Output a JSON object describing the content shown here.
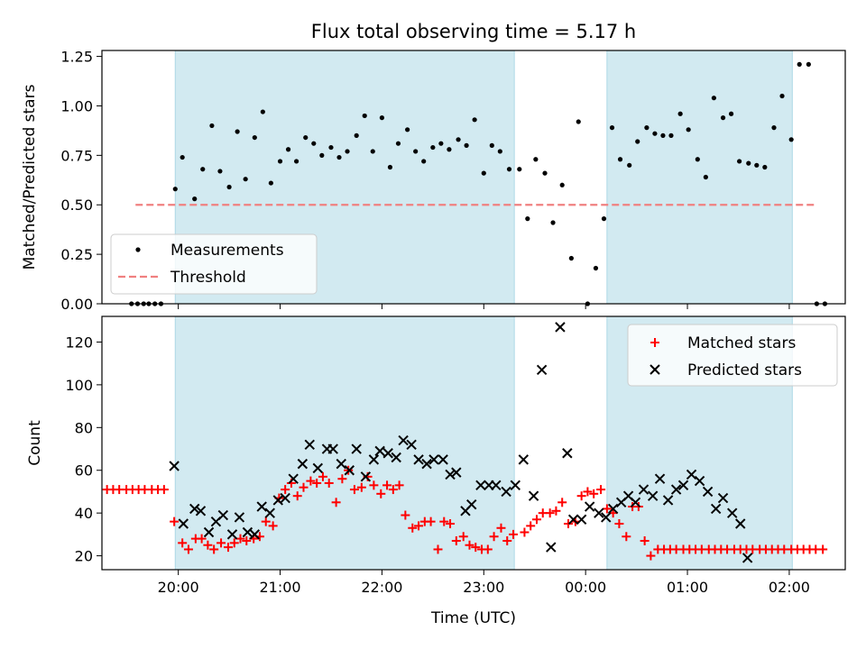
{
  "chart_data": [
    {
      "type": "scatter",
      "title": "Flux total observing time = 5.17 h",
      "ylabel": "Matched/Predicted stars",
      "xlim": [
        19.25,
        26.55
      ],
      "ylim": [
        0.0,
        1.28
      ],
      "xtick_values": [
        20,
        21,
        22,
        23,
        24,
        25,
        26
      ],
      "ytick_values": [
        0.0,
        0.25,
        0.5,
        0.75,
        1.0,
        1.25
      ],
      "ytick_labels": [
        "0.00",
        "0.25",
        "0.50",
        "0.75",
        "1.00",
        "1.25"
      ],
      "legend_position": "lower-left",
      "shaded_intervals": [
        [
          19.97,
          23.3
        ],
        [
          24.21,
          26.03
        ]
      ],
      "shade_color": "#add8e6",
      "series": [
        {
          "name": "Measurements",
          "color": "#000000",
          "marker": "dot",
          "x": [
            19.54,
            19.6,
            19.66,
            19.71,
            19.77,
            19.83,
            19.97,
            20.04,
            20.16,
            20.24,
            20.33,
            20.41,
            20.5,
            20.58,
            20.66,
            20.75,
            20.83,
            20.91,
            21.0,
            21.08,
            21.16,
            21.25,
            21.33,
            21.41,
            21.5,
            21.58,
            21.66,
            21.75,
            21.83,
            21.91,
            22.0,
            22.08,
            22.16,
            22.25,
            22.33,
            22.41,
            22.5,
            22.58,
            22.66,
            22.75,
            22.83,
            22.91,
            23.0,
            23.08,
            23.16,
            23.25,
            23.35,
            23.43,
            23.51,
            23.6,
            23.68,
            23.77,
            23.86,
            23.93,
            24.02,
            24.1,
            24.18,
            24.26,
            24.34,
            24.43,
            24.51,
            24.6,
            24.68,
            24.76,
            24.84,
            24.93,
            25.01,
            25.1,
            25.18,
            25.26,
            25.35,
            25.43,
            25.51,
            25.6,
            25.68,
            25.76,
            25.85,
            25.93,
            26.02,
            26.1,
            26.19,
            26.27,
            26.35
          ],
          "y": [
            0,
            0,
            0,
            0,
            0,
            0,
            0.58,
            0.74,
            0.53,
            0.68,
            0.9,
            0.67,
            0.59,
            0.87,
            0.63,
            0.84,
            0.97,
            0.61,
            0.72,
            0.78,
            0.72,
            0.84,
            0.81,
            0.75,
            0.79,
            0.74,
            0.77,
            0.85,
            0.95,
            0.77,
            0.94,
            0.69,
            0.81,
            0.88,
            0.77,
            0.72,
            0.79,
            0.81,
            0.78,
            0.83,
            0.8,
            0.93,
            0.66,
            0.8,
            0.77,
            0.68,
            0.68,
            0.43,
            0.73,
            0.66,
            0.41,
            0.6,
            0.23,
            0.92,
            0,
            0.18,
            0.43,
            0.89,
            0.73,
            0.7,
            0.82,
            0.89,
            0.86,
            0.85,
            0.85,
            0.96,
            0.88,
            0.73,
            0.64,
            1.04,
            0.94,
            0.96,
            0.72,
            0.71,
            0.7,
            0.69,
            0.89,
            1.05,
            0.83,
            1.21,
            1.21,
            0,
            0
          ]
        },
        {
          "name": "Threshold",
          "color": "#f08080",
          "style": "dashed",
          "x": [
            19.58,
            26.25
          ],
          "y": [
            0.5,
            0.5
          ]
        }
      ]
    },
    {
      "type": "scatter",
      "xlabel": "Time (UTC)",
      "ylabel": "Count",
      "xlim": [
        19.25,
        26.55
      ],
      "ylim": [
        13.5,
        132
      ],
      "xtick_values": [
        20,
        21,
        22,
        23,
        24,
        25,
        26
      ],
      "xtick_labels": [
        "20:00",
        "21:00",
        "22:00",
        "23:00",
        "00:00",
        "01:00",
        "02:00"
      ],
      "ytick_values": [
        20,
        40,
        60,
        80,
        100,
        120
      ],
      "ytick_labels": [
        "20",
        "40",
        "60",
        "80",
        "100",
        "120"
      ],
      "legend_position": "top-right",
      "shaded_intervals": [
        [
          19.97,
          23.3
        ],
        [
          24.21,
          26.03
        ]
      ],
      "shade_color": "#add8e6",
      "series": [
        {
          "name": "Matched stars",
          "color": "#ff0000",
          "marker": "plus",
          "x": [
            19.3,
            19.36,
            19.42,
            19.49,
            19.55,
            19.61,
            19.67,
            19.74,
            19.8,
            19.86,
            19.96,
            20.04,
            20.1,
            20.17,
            20.23,
            20.29,
            20.35,
            20.42,
            20.49,
            20.55,
            20.61,
            20.67,
            20.74,
            20.8,
            20.86,
            20.93,
            20.99,
            21.05,
            21.11,
            21.17,
            21.23,
            21.3,
            21.36,
            21.42,
            21.48,
            21.55,
            21.61,
            21.67,
            21.73,
            21.8,
            21.86,
            21.92,
            21.99,
            22.05,
            22.11,
            22.17,
            22.23,
            22.3,
            22.36,
            22.42,
            22.48,
            22.55,
            22.61,
            22.67,
            22.73,
            22.8,
            22.86,
            22.92,
            22.98,
            23.04,
            23.1,
            23.17,
            23.23,
            23.29,
            23.4,
            23.46,
            23.52,
            23.58,
            23.65,
            23.71,
            23.77,
            23.83,
            23.9,
            23.96,
            24.02,
            24.08,
            24.15,
            24.21,
            24.27,
            24.33,
            24.4,
            24.46,
            24.52,
            24.58,
            24.64,
            24.71,
            24.77,
            24.83,
            24.89,
            24.96,
            25.02,
            25.08,
            25.14,
            25.21,
            25.27,
            25.33,
            25.39,
            25.46,
            25.52,
            25.58,
            25.64,
            25.71,
            25.77,
            25.83,
            25.89,
            25.95,
            26.02,
            26.08,
            26.14,
            26.2,
            26.26,
            26.33
          ],
          "y": [
            51,
            51,
            51,
            51,
            51,
            51,
            51,
            51,
            51,
            51,
            36,
            26,
            23,
            28,
            28,
            25,
            23,
            26,
            24,
            26,
            28,
            27,
            28,
            29,
            36,
            34,
            47,
            51,
            54,
            48,
            52,
            55,
            54,
            57,
            54,
            45,
            56,
            60,
            51,
            52,
            57,
            53,
            49,
            53,
            51,
            53,
            39,
            33,
            34,
            36,
            36,
            23,
            36,
            35,
            27,
            29,
            25,
            24,
            23,
            23,
            29,
            33,
            27,
            30,
            31,
            34,
            37,
            40,
            40,
            41,
            45,
            35,
            36,
            48,
            50,
            49,
            51,
            42,
            40,
            35,
            29,
            43,
            43,
            27,
            20,
            23,
            23,
            23,
            23,
            23,
            23,
            23,
            23,
            23,
            23,
            23,
            23,
            23,
            23,
            23,
            23,
            23,
            23,
            23,
            23,
            23,
            23,
            23,
            23,
            23,
            23,
            23
          ],
          "y_note": ""
        },
        {
          "name": "Predicted stars",
          "color": "#000000",
          "marker": "x",
          "x": [
            19.96,
            20.05,
            20.16,
            20.22,
            20.3,
            20.37,
            20.44,
            20.53,
            20.6,
            20.68,
            20.75,
            20.82,
            20.9,
            20.98,
            21.05,
            21.13,
            21.22,
            21.29,
            21.37,
            21.46,
            21.52,
            21.6,
            21.68,
            21.75,
            21.84,
            21.92,
            21.98,
            22.06,
            22.14,
            22.21,
            22.29,
            22.36,
            22.44,
            22.51,
            22.6,
            22.67,
            22.73,
            22.82,
            22.88,
            22.97,
            23.05,
            23.12,
            23.22,
            23.31,
            23.39,
            23.49,
            23.57,
            23.66,
            23.75,
            23.82,
            23.88,
            23.96,
            24.04,
            24.13,
            24.2,
            24.27,
            24.35,
            24.42,
            24.49,
            24.57,
            24.66,
            24.73,
            24.81,
            24.89,
            24.96,
            25.04,
            25.12,
            25.2,
            25.28,
            25.35,
            25.44,
            25.52,
            25.59,
            25.67,
            25.75,
            25.82,
            25.91,
            25.97,
            26.05
          ],
          "y": [
            62,
            35,
            42,
            41,
            31,
            36,
            39,
            30,
            38,
            31,
            30,
            43,
            40,
            46,
            47,
            56,
            63,
            72,
            61,
            70,
            70,
            63,
            60,
            70,
            57,
            65,
            69,
            68,
            66,
            74,
            72,
            65,
            63,
            65,
            65,
            58,
            59,
            41,
            44,
            53,
            53,
            53,
            50,
            53,
            65,
            48,
            107,
            24,
            127,
            68,
            37,
            37,
            43,
            40,
            38,
            42,
            45,
            48,
            45,
            51,
            48,
            56,
            46,
            51,
            53,
            58,
            55,
            50,
            42,
            47,
            40,
            35,
            19,
            null,
            null,
            null,
            null,
            null,
            null
          ]
        }
      ]
    }
  ]
}
